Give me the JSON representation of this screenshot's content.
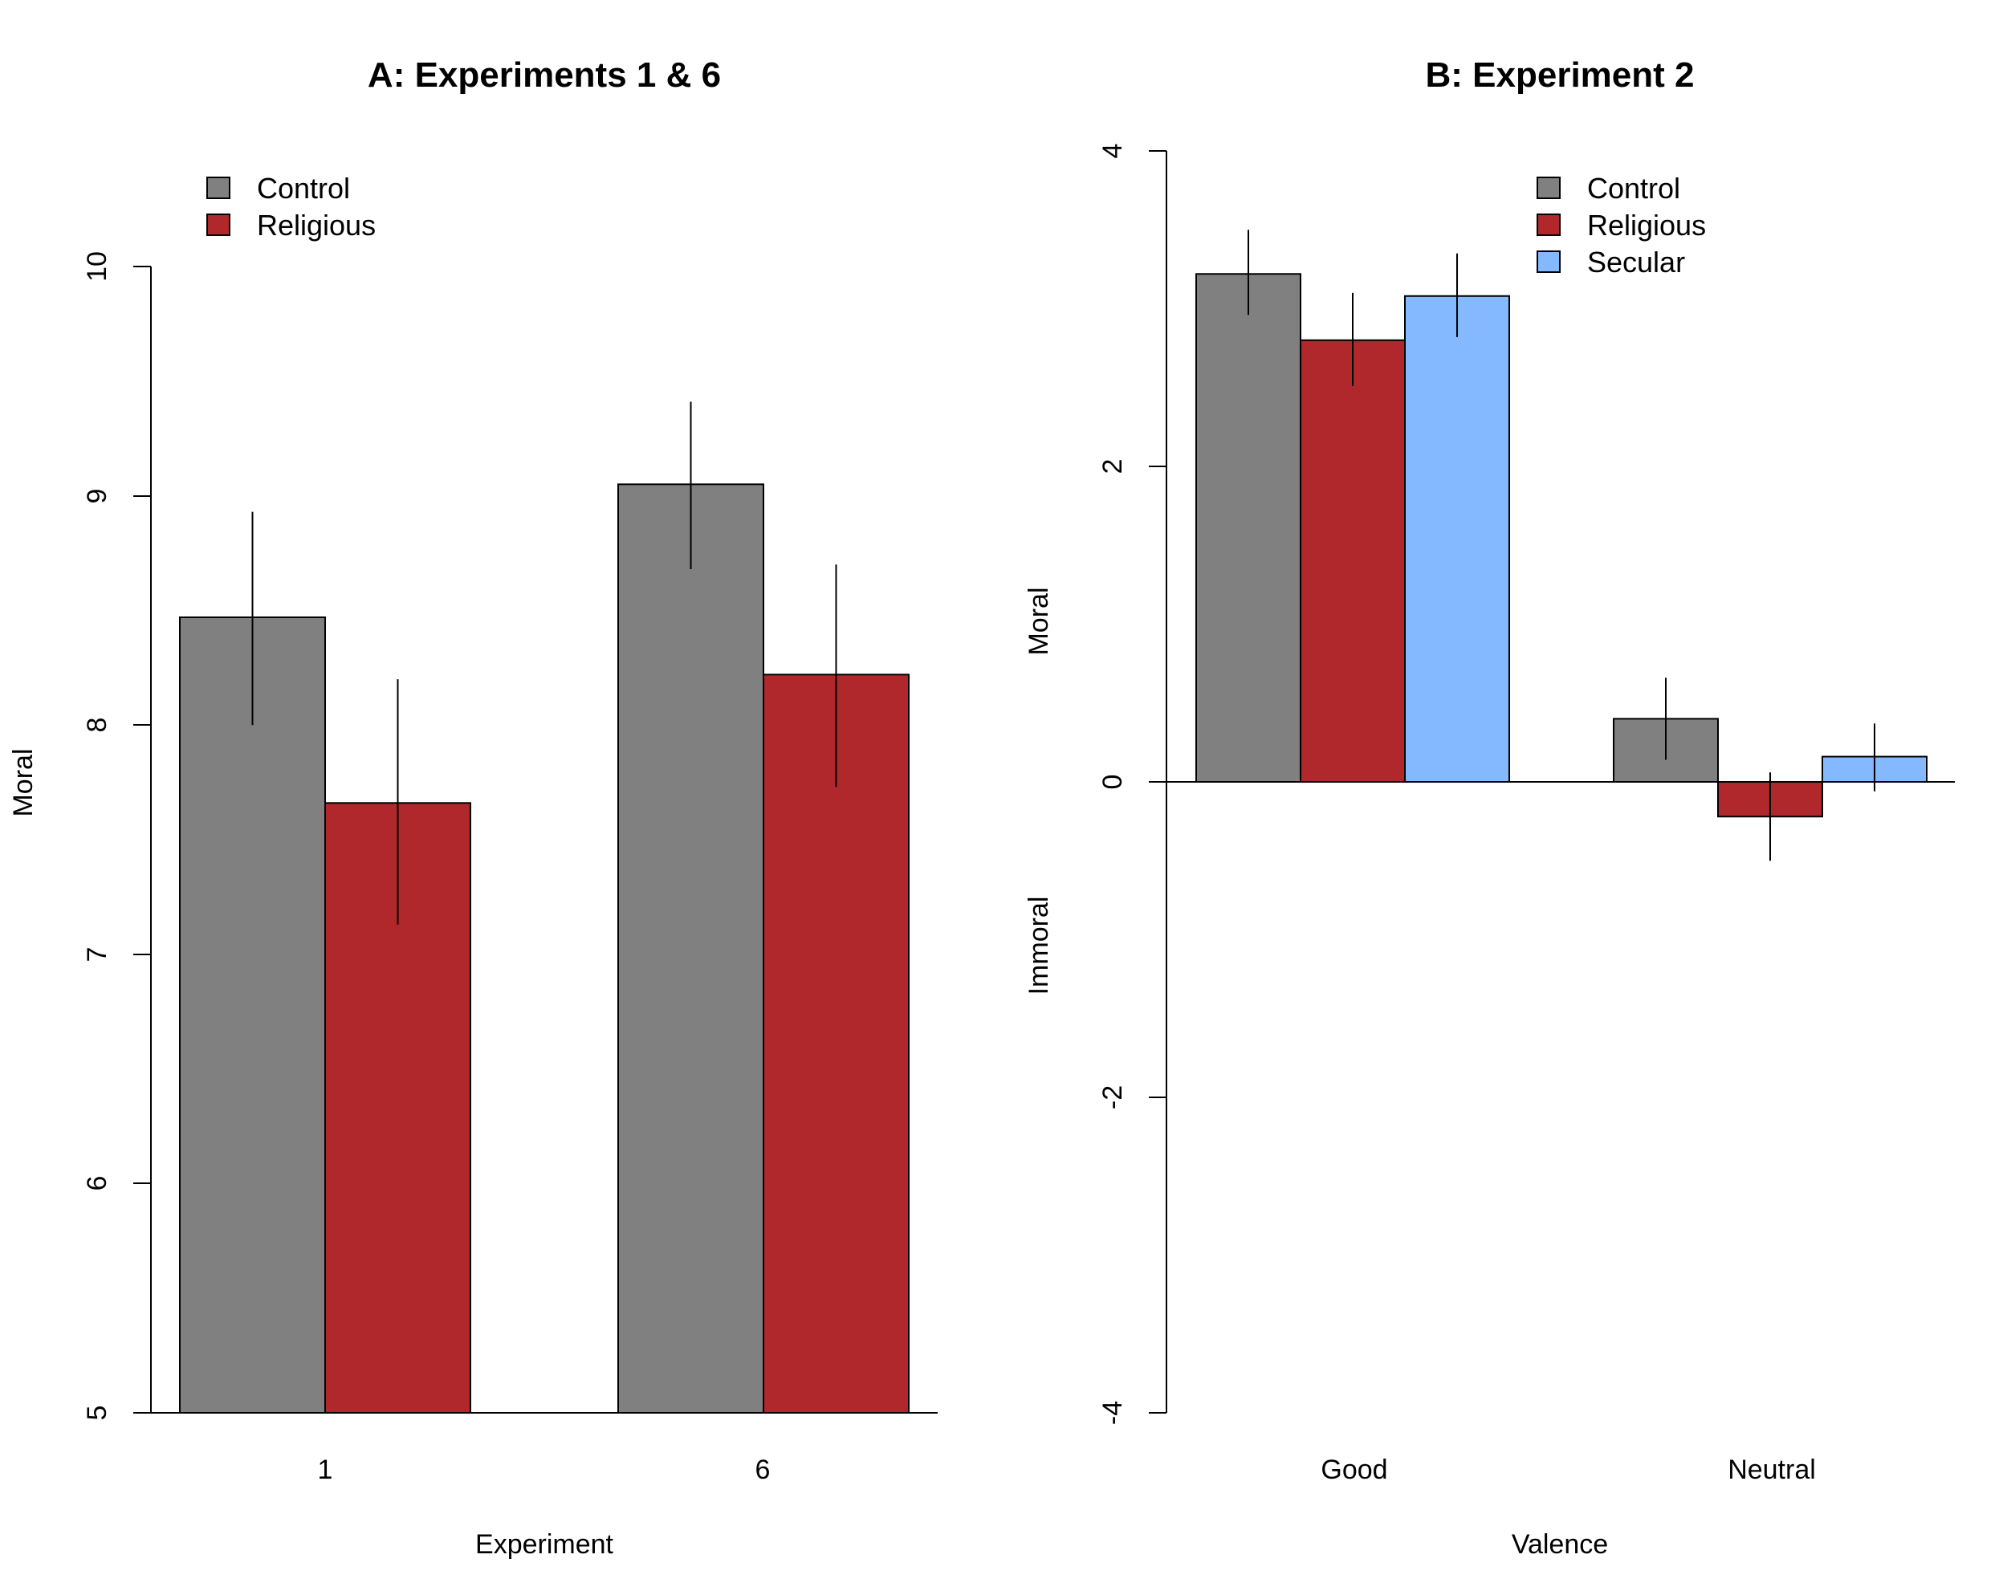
{
  "colors": {
    "control": "#808080",
    "religious": "#b0282b",
    "secular": "#84b8ff"
  },
  "chart_data": [
    {
      "type": "bar",
      "title": "A: Experiments 1 & 6",
      "xlabel": "Experiment",
      "ylabel": "Moral",
      "ylim": [
        5,
        10
      ],
      "yticks": [
        5,
        6,
        7,
        8,
        9,
        10
      ],
      "categories": [
        "1",
        "6"
      ],
      "series": [
        {
          "name": "Control",
          "color": "#808080",
          "values": [
            8.47,
            9.05
          ],
          "err_low": [
            8.0,
            8.68
          ],
          "err_high": [
            8.93,
            9.41
          ]
        },
        {
          "name": "Religious",
          "color": "#b0282b",
          "values": [
            7.66,
            8.22
          ],
          "err_low": [
            7.13,
            7.73
          ],
          "err_high": [
            8.2,
            8.7
          ]
        }
      ],
      "legend": {
        "position": "top-left",
        "entries": [
          "Control",
          "Religious"
        ]
      }
    },
    {
      "type": "bar",
      "title": "B: Experiment 2",
      "xlabel": "Valence",
      "ylabel_top": "Moral",
      "ylabel_bottom": "Immoral",
      "ylim": [
        -4,
        4
      ],
      "yticks": [
        -4,
        -2,
        0,
        2,
        4
      ],
      "categories": [
        "Good",
        "Neutral"
      ],
      "series": [
        {
          "name": "Control",
          "color": "#808080",
          "values": [
            3.22,
            0.4
          ],
          "err_low": [
            2.96,
            0.14
          ],
          "err_high": [
            3.5,
            0.66
          ]
        },
        {
          "name": "Religious",
          "color": "#b0282b",
          "values": [
            2.8,
            -0.22
          ],
          "err_low": [
            2.51,
            -0.5
          ],
          "err_high": [
            3.1,
            0.06
          ]
        },
        {
          "name": "Secular",
          "color": "#84b8ff",
          "values": [
            3.08,
            0.16
          ],
          "err_low": [
            2.82,
            -0.06
          ],
          "err_high": [
            3.35,
            0.37
          ]
        }
      ],
      "legend": {
        "position": "top-right",
        "entries": [
          "Control",
          "Religious",
          "Secular"
        ]
      }
    }
  ]
}
